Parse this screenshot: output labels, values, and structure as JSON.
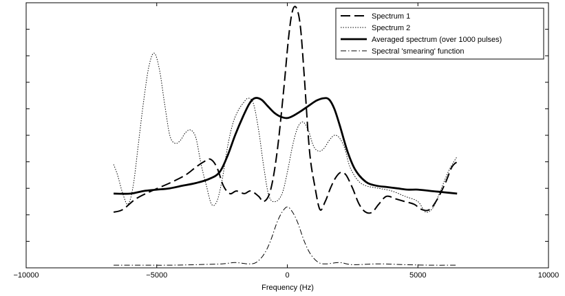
{
  "chart_data": {
    "type": "line",
    "title": "",
    "xlabel": "Frequency (Hz)",
    "ylabel": "",
    "xlim": [
      -10000,
      10000
    ],
    "ylim": [
      0,
      1
    ],
    "x_ticks": [
      -10000,
      -5000,
      0,
      5000,
      10000
    ],
    "x_tick_labels": [
      "−10000",
      "−5000",
      "0",
      "5000",
      "10000"
    ],
    "y_ticks": [
      0,
      0.1,
      0.2,
      0.3,
      0.4,
      0.5,
      0.6,
      0.7,
      0.8,
      0.9,
      1.0
    ],
    "y_tick_labels_shown": false,
    "grid": false,
    "legend_position": "top-right",
    "series": [
      {
        "name": "Spectrum 1",
        "style": "dashed",
        "color": "#000000",
        "points": [
          [
            -6650,
            0.21
          ],
          [
            -6300,
            0.22
          ],
          [
            -5800,
            0.26
          ],
          [
            -5200,
            0.29
          ],
          [
            -4500,
            0.32
          ],
          [
            -3900,
            0.35
          ],
          [
            -3500,
            0.38
          ],
          [
            -3200,
            0.4
          ],
          [
            -2950,
            0.41
          ],
          [
            -2700,
            0.38
          ],
          [
            -2450,
            0.31
          ],
          [
            -2200,
            0.28
          ],
          [
            -1950,
            0.29
          ],
          [
            -1650,
            0.28
          ],
          [
            -1400,
            0.29
          ],
          [
            -1100,
            0.27
          ],
          [
            -900,
            0.25
          ],
          [
            -650,
            0.29
          ],
          [
            -400,
            0.43
          ],
          [
            -150,
            0.66
          ],
          [
            50,
            0.87
          ],
          [
            200,
            0.97
          ],
          [
            350,
            0.98
          ],
          [
            500,
            0.91
          ],
          [
            650,
            0.72
          ],
          [
            850,
            0.44
          ],
          [
            1050,
            0.31
          ],
          [
            1250,
            0.22
          ],
          [
            1450,
            0.25
          ],
          [
            1650,
            0.3
          ],
          [
            1850,
            0.34
          ],
          [
            2050,
            0.36
          ],
          [
            2250,
            0.35
          ],
          [
            2500,
            0.3
          ],
          [
            2750,
            0.24
          ],
          [
            3000,
            0.21
          ],
          [
            3250,
            0.21
          ],
          [
            3500,
            0.24
          ],
          [
            3800,
            0.27
          ],
          [
            4150,
            0.26
          ],
          [
            4500,
            0.25
          ],
          [
            4850,
            0.24
          ],
          [
            5150,
            0.22
          ],
          [
            5450,
            0.22
          ],
          [
            5750,
            0.26
          ],
          [
            6050,
            0.32
          ],
          [
            6300,
            0.38
          ],
          [
            6500,
            0.4
          ]
        ]
      },
      {
        "name": "Spectrum 2",
        "style": "dotted",
        "color": "#000000",
        "points": [
          [
            -6650,
            0.39
          ],
          [
            -6500,
            0.35
          ],
          [
            -6300,
            0.28
          ],
          [
            -6100,
            0.24
          ],
          [
            -5900,
            0.31
          ],
          [
            -5700,
            0.47
          ],
          [
            -5500,
            0.63
          ],
          [
            -5300,
            0.76
          ],
          [
            -5100,
            0.81
          ],
          [
            -4900,
            0.75
          ],
          [
            -4700,
            0.62
          ],
          [
            -4500,
            0.5
          ],
          [
            -4300,
            0.47
          ],
          [
            -4100,
            0.48
          ],
          [
            -3900,
            0.51
          ],
          [
            -3700,
            0.52
          ],
          [
            -3500,
            0.49
          ],
          [
            -3300,
            0.39
          ],
          [
            -3100,
            0.31
          ],
          [
            -2900,
            0.24
          ],
          [
            -2700,
            0.25
          ],
          [
            -2500,
            0.33
          ],
          [
            -2300,
            0.45
          ],
          [
            -2100,
            0.54
          ],
          [
            -1900,
            0.59
          ],
          [
            -1700,
            0.62
          ],
          [
            -1500,
            0.64
          ],
          [
            -1300,
            0.62
          ],
          [
            -1100,
            0.52
          ],
          [
            -900,
            0.38
          ],
          [
            -700,
            0.27
          ],
          [
            -450,
            0.25
          ],
          [
            -200,
            0.28
          ],
          [
            0,
            0.36
          ],
          [
            200,
            0.46
          ],
          [
            400,
            0.53
          ],
          [
            600,
            0.55
          ],
          [
            800,
            0.52
          ],
          [
            1000,
            0.46
          ],
          [
            1200,
            0.44
          ],
          [
            1400,
            0.45
          ],
          [
            1600,
            0.48
          ],
          [
            1800,
            0.5
          ],
          [
            2000,
            0.49
          ],
          [
            2200,
            0.45
          ],
          [
            2400,
            0.38
          ],
          [
            2700,
            0.33
          ],
          [
            3000,
            0.31
          ],
          [
            3500,
            0.3
          ],
          [
            4000,
            0.29
          ],
          [
            4500,
            0.27
          ],
          [
            5000,
            0.25
          ],
          [
            5300,
            0.21
          ],
          [
            5600,
            0.23
          ],
          [
            5900,
            0.3
          ],
          [
            6200,
            0.37
          ],
          [
            6500,
            0.42
          ]
        ]
      },
      {
        "name": "Averaged spectrum (over 1000 pulses)",
        "style": "solid-thick",
        "color": "#000000",
        "points": [
          [
            -6650,
            0.28
          ],
          [
            -6000,
            0.28
          ],
          [
            -5500,
            0.29
          ],
          [
            -5000,
            0.295
          ],
          [
            -4500,
            0.3
          ],
          [
            -4000,
            0.31
          ],
          [
            -3500,
            0.32
          ],
          [
            -3000,
            0.335
          ],
          [
            -2600,
            0.36
          ],
          [
            -2300,
            0.42
          ],
          [
            -2000,
            0.5
          ],
          [
            -1700,
            0.57
          ],
          [
            -1450,
            0.62
          ],
          [
            -1250,
            0.64
          ],
          [
            -1000,
            0.635
          ],
          [
            -750,
            0.61
          ],
          [
            -500,
            0.585
          ],
          [
            -250,
            0.57
          ],
          [
            0,
            0.565
          ],
          [
            250,
            0.575
          ],
          [
            500,
            0.59
          ],
          [
            800,
            0.61
          ],
          [
            1100,
            0.63
          ],
          [
            1400,
            0.64
          ],
          [
            1600,
            0.635
          ],
          [
            1800,
            0.6
          ],
          [
            2000,
            0.54
          ],
          [
            2300,
            0.44
          ],
          [
            2600,
            0.37
          ],
          [
            3000,
            0.325
          ],
          [
            3400,
            0.31
          ],
          [
            3800,
            0.305
          ],
          [
            4200,
            0.3
          ],
          [
            4600,
            0.295
          ],
          [
            5000,
            0.295
          ],
          [
            5500,
            0.29
          ],
          [
            6000,
            0.285
          ],
          [
            6500,
            0.28
          ]
        ]
      },
      {
        "name": "Spectral 'smearing' function",
        "style": "dashdot",
        "color": "#000000",
        "points": [
          [
            -6650,
            0.01
          ],
          [
            -5500,
            0.01
          ],
          [
            -4500,
            0.01
          ],
          [
            -3500,
            0.012
          ],
          [
            -2500,
            0.015
          ],
          [
            -2000,
            0.02
          ],
          [
            -1500,
            0.015
          ],
          [
            -1200,
            0.02
          ],
          [
            -900,
            0.05
          ],
          [
            -650,
            0.1
          ],
          [
            -400,
            0.17
          ],
          [
            -200,
            0.21
          ],
          [
            0,
            0.23
          ],
          [
            200,
            0.21
          ],
          [
            400,
            0.17
          ],
          [
            650,
            0.1
          ],
          [
            900,
            0.05
          ],
          [
            1200,
            0.02
          ],
          [
            1500,
            0.015
          ],
          [
            2000,
            0.02
          ],
          [
            2500,
            0.012
          ],
          [
            3500,
            0.015
          ],
          [
            4500,
            0.012
          ],
          [
            5500,
            0.01
          ],
          [
            6450,
            0.01
          ]
        ]
      }
    ]
  }
}
